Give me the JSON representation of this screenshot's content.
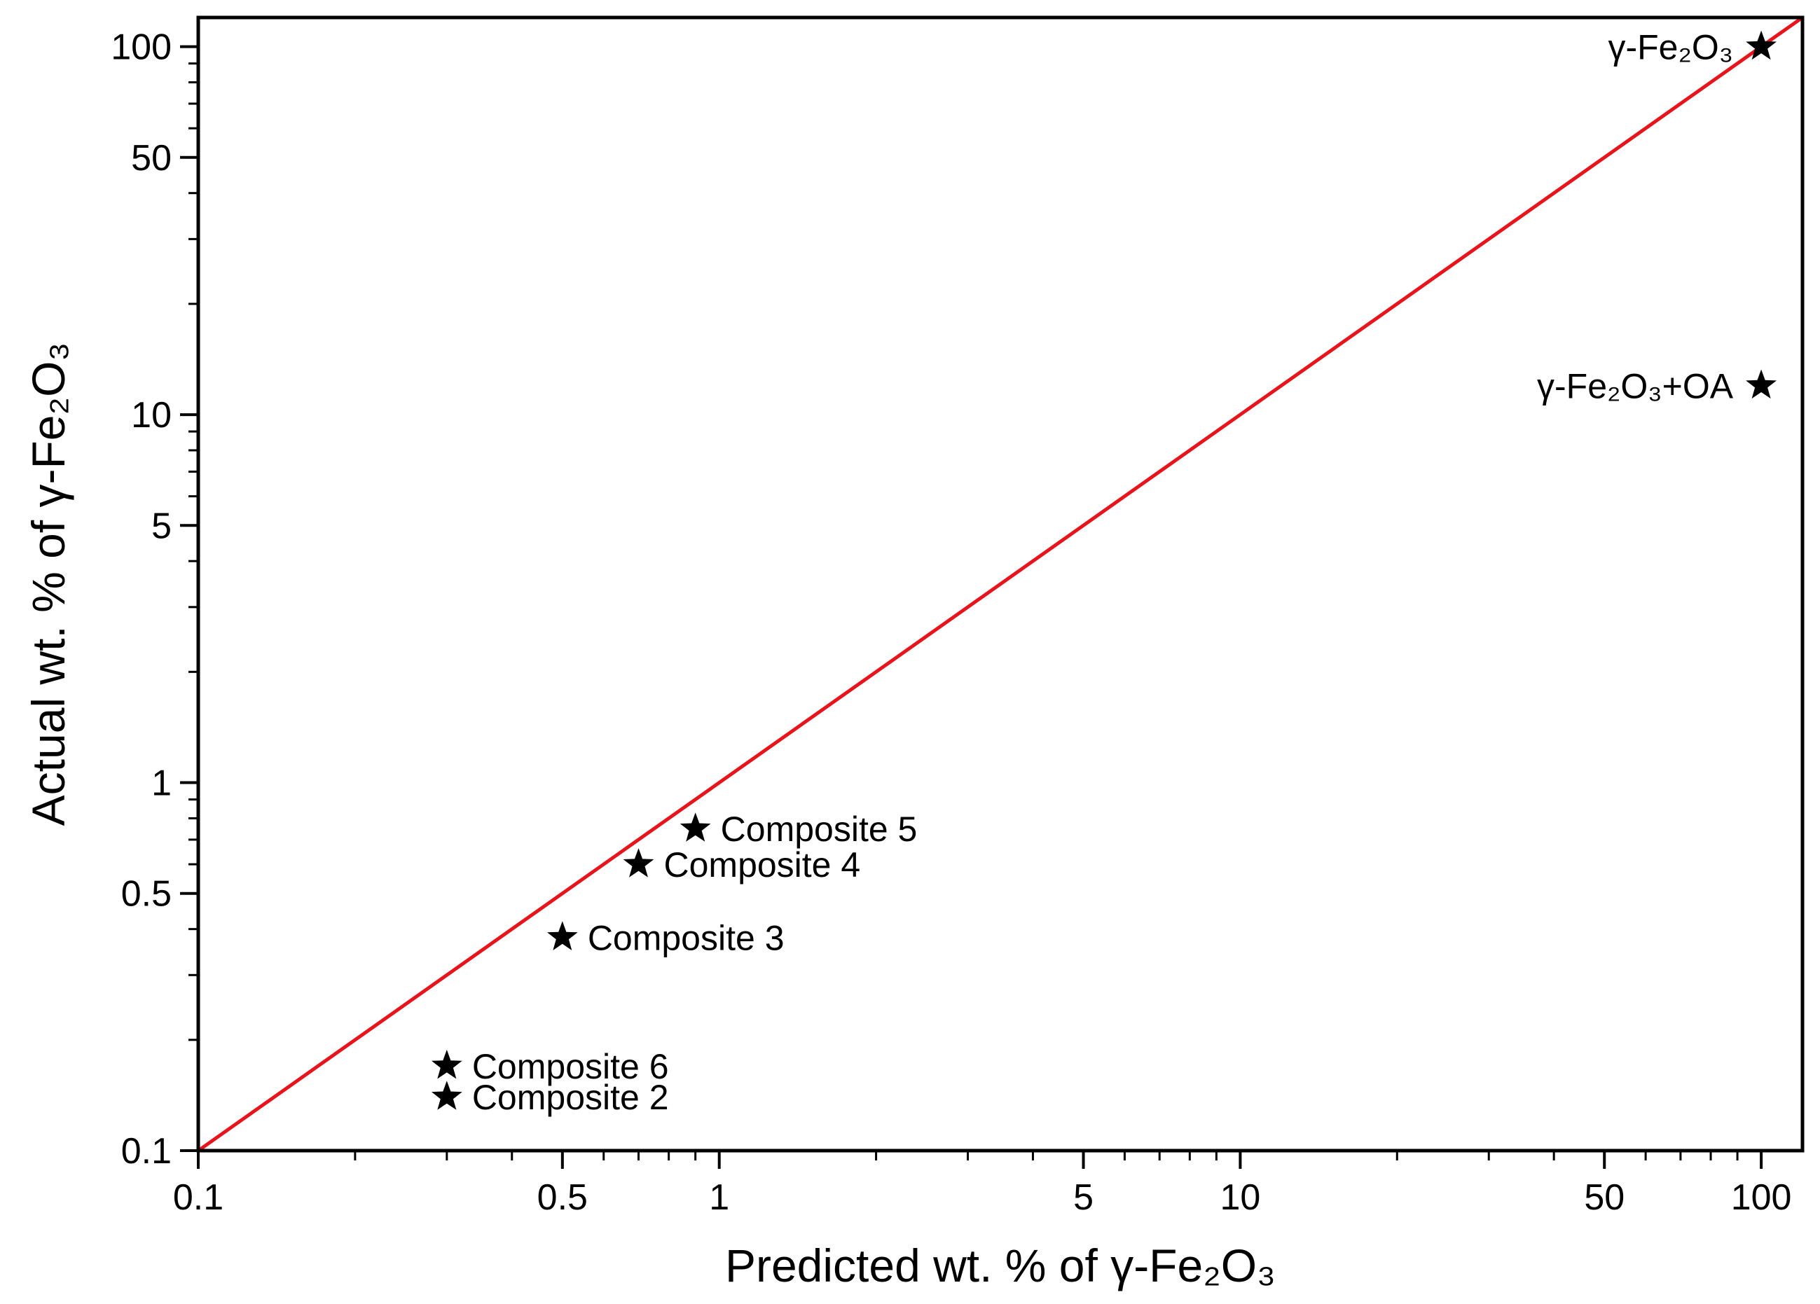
{
  "chart_data": {
    "type": "scatter",
    "x_scale": "log",
    "y_scale": "log",
    "xlim": [
      0.1,
      120
    ],
    "ylim": [
      0.1,
      120
    ],
    "xlabel": "Predicted wt. % of γ-Fe₂O₃",
    "ylabel": "Actual wt. % of γ-Fe₂O₃",
    "x_ticks": [
      0.1,
      0.5,
      1,
      5,
      10,
      50,
      100
    ],
    "x_tick_labels": [
      "0.1",
      "0.5",
      "1",
      "5",
      "10",
      "50",
      "100"
    ],
    "y_ticks": [
      0.1,
      0.5,
      1,
      5,
      10,
      50,
      100
    ],
    "y_tick_labels": [
      "0.1",
      "0.5",
      "1",
      "5",
      "10",
      "50",
      "100"
    ],
    "marker": "star",
    "marker_color": "#000000",
    "reference_line": {
      "type": "y=x",
      "color": "#e8141b"
    },
    "points": [
      {
        "label": "γ-Fe₂O₃",
        "x": 100,
        "y": 100,
        "label_side": "left"
      },
      {
        "label": "γ-Fe₂O₃+OA",
        "x": 100,
        "y": 12,
        "label_side": "left"
      },
      {
        "label": "Composite 5",
        "x": 0.9,
        "y": 0.75,
        "label_side": "right"
      },
      {
        "label": "Composite 4",
        "x": 0.7,
        "y": 0.6,
        "label_side": "right"
      },
      {
        "label": "Composite 3",
        "x": 0.5,
        "y": 0.38,
        "label_side": "right"
      },
      {
        "label": "Composite 6",
        "x": 0.3,
        "y": 0.17,
        "label_side": "right"
      },
      {
        "label": "Composite 2",
        "x": 0.3,
        "y": 0.14,
        "label_side": "right"
      }
    ],
    "grid": false,
    "legend": "none"
  }
}
